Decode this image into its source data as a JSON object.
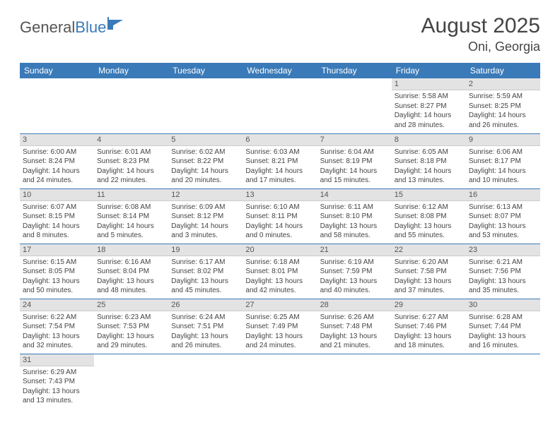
{
  "logo": {
    "text1": "General",
    "text2": "Blue"
  },
  "title": "August 2025",
  "location": "Oni, Georgia",
  "colors": {
    "header_bg": "#3a7ab8",
    "header_fg": "#ffffff",
    "daynum_bg": "#e3e3e3",
    "row_border": "#3a7ab8",
    "text": "#444444",
    "logo_gray": "#555555",
    "logo_blue": "#3a7ab8"
  },
  "weekdays": [
    "Sunday",
    "Monday",
    "Tuesday",
    "Wednesday",
    "Thursday",
    "Friday",
    "Saturday"
  ],
  "weeks": [
    [
      null,
      null,
      null,
      null,
      null,
      {
        "n": "1",
        "sr": "5:58 AM",
        "ss": "8:27 PM",
        "dl": "14 hours and 28 minutes."
      },
      {
        "n": "2",
        "sr": "5:59 AM",
        "ss": "8:25 PM",
        "dl": "14 hours and 26 minutes."
      }
    ],
    [
      {
        "n": "3",
        "sr": "6:00 AM",
        "ss": "8:24 PM",
        "dl": "14 hours and 24 minutes."
      },
      {
        "n": "4",
        "sr": "6:01 AM",
        "ss": "8:23 PM",
        "dl": "14 hours and 22 minutes."
      },
      {
        "n": "5",
        "sr": "6:02 AM",
        "ss": "8:22 PM",
        "dl": "14 hours and 20 minutes."
      },
      {
        "n": "6",
        "sr": "6:03 AM",
        "ss": "8:21 PM",
        "dl": "14 hours and 17 minutes."
      },
      {
        "n": "7",
        "sr": "6:04 AM",
        "ss": "8:19 PM",
        "dl": "14 hours and 15 minutes."
      },
      {
        "n": "8",
        "sr": "6:05 AM",
        "ss": "8:18 PM",
        "dl": "14 hours and 13 minutes."
      },
      {
        "n": "9",
        "sr": "6:06 AM",
        "ss": "8:17 PM",
        "dl": "14 hours and 10 minutes."
      }
    ],
    [
      {
        "n": "10",
        "sr": "6:07 AM",
        "ss": "8:15 PM",
        "dl": "14 hours and 8 minutes."
      },
      {
        "n": "11",
        "sr": "6:08 AM",
        "ss": "8:14 PM",
        "dl": "14 hours and 5 minutes."
      },
      {
        "n": "12",
        "sr": "6:09 AM",
        "ss": "8:12 PM",
        "dl": "14 hours and 3 minutes."
      },
      {
        "n": "13",
        "sr": "6:10 AM",
        "ss": "8:11 PM",
        "dl": "14 hours and 0 minutes."
      },
      {
        "n": "14",
        "sr": "6:11 AM",
        "ss": "8:10 PM",
        "dl": "13 hours and 58 minutes."
      },
      {
        "n": "15",
        "sr": "6:12 AM",
        "ss": "8:08 PM",
        "dl": "13 hours and 55 minutes."
      },
      {
        "n": "16",
        "sr": "6:13 AM",
        "ss": "8:07 PM",
        "dl": "13 hours and 53 minutes."
      }
    ],
    [
      {
        "n": "17",
        "sr": "6:15 AM",
        "ss": "8:05 PM",
        "dl": "13 hours and 50 minutes."
      },
      {
        "n": "18",
        "sr": "6:16 AM",
        "ss": "8:04 PM",
        "dl": "13 hours and 48 minutes."
      },
      {
        "n": "19",
        "sr": "6:17 AM",
        "ss": "8:02 PM",
        "dl": "13 hours and 45 minutes."
      },
      {
        "n": "20",
        "sr": "6:18 AM",
        "ss": "8:01 PM",
        "dl": "13 hours and 42 minutes."
      },
      {
        "n": "21",
        "sr": "6:19 AM",
        "ss": "7:59 PM",
        "dl": "13 hours and 40 minutes."
      },
      {
        "n": "22",
        "sr": "6:20 AM",
        "ss": "7:58 PM",
        "dl": "13 hours and 37 minutes."
      },
      {
        "n": "23",
        "sr": "6:21 AM",
        "ss": "7:56 PM",
        "dl": "13 hours and 35 minutes."
      }
    ],
    [
      {
        "n": "24",
        "sr": "6:22 AM",
        "ss": "7:54 PM",
        "dl": "13 hours and 32 minutes."
      },
      {
        "n": "25",
        "sr": "6:23 AM",
        "ss": "7:53 PM",
        "dl": "13 hours and 29 minutes."
      },
      {
        "n": "26",
        "sr": "6:24 AM",
        "ss": "7:51 PM",
        "dl": "13 hours and 26 minutes."
      },
      {
        "n": "27",
        "sr": "6:25 AM",
        "ss": "7:49 PM",
        "dl": "13 hours and 24 minutes."
      },
      {
        "n": "28",
        "sr": "6:26 AM",
        "ss": "7:48 PM",
        "dl": "13 hours and 21 minutes."
      },
      {
        "n": "29",
        "sr": "6:27 AM",
        "ss": "7:46 PM",
        "dl": "13 hours and 18 minutes."
      },
      {
        "n": "30",
        "sr": "6:28 AM",
        "ss": "7:44 PM",
        "dl": "13 hours and 16 minutes."
      }
    ],
    [
      {
        "n": "31",
        "sr": "6:29 AM",
        "ss": "7:43 PM",
        "dl": "13 hours and 13 minutes."
      },
      null,
      null,
      null,
      null,
      null,
      null
    ]
  ],
  "labels": {
    "sunrise": "Sunrise: ",
    "sunset": "Sunset: ",
    "daylight": "Daylight: "
  }
}
